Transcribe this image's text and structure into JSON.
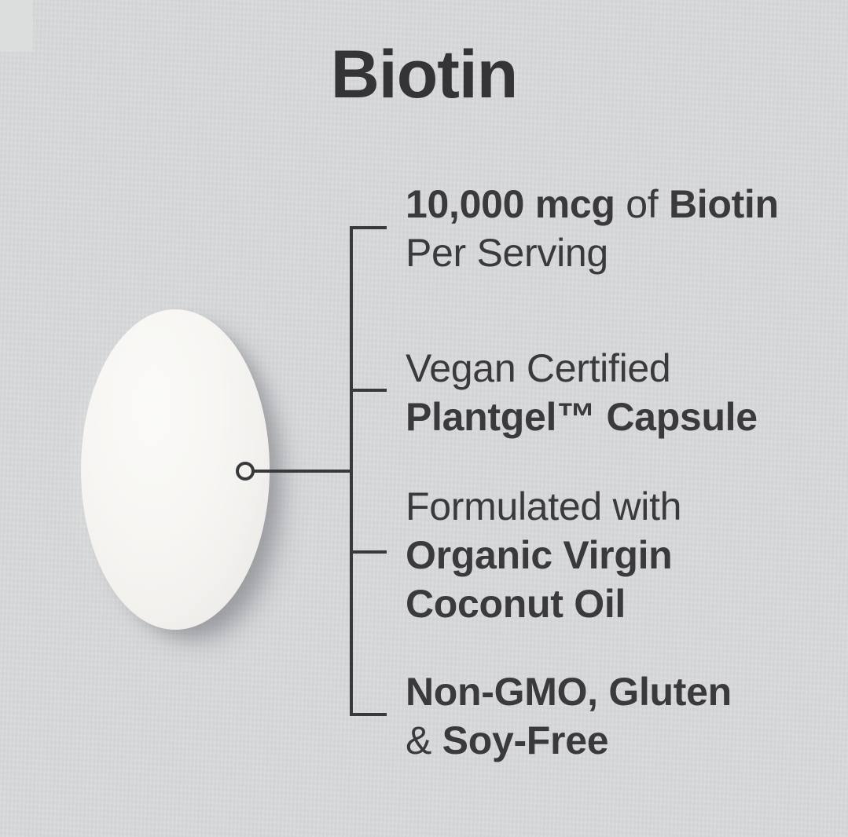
{
  "title": {
    "text": "Biotin"
  },
  "colors": {
    "background": "#d8d9db",
    "text": "#3a3a3c",
    "title_text": "#343437",
    "callout_line": "#39393b",
    "capsule": "#f6f5f2"
  },
  "capsule": {
    "label": "white-softgel-capsule"
  },
  "features": [
    {
      "id": "dosage",
      "lines": [
        [
          {
            "t": "10,000 mcg",
            "b": true
          },
          {
            "t": " of ",
            "b": false
          },
          {
            "t": "Biotin",
            "b": true
          }
        ],
        [
          {
            "t": "Per Serving",
            "b": false
          }
        ]
      ]
    },
    {
      "id": "vegan-capsule",
      "lines": [
        [
          {
            "t": "Vegan Certified",
            "b": false
          }
        ],
        [
          {
            "t": "Plantgel™ Capsule",
            "b": true
          }
        ]
      ]
    },
    {
      "id": "coconut-oil",
      "lines": [
        [
          {
            "t": "Formulated with",
            "b": false
          }
        ],
        [
          {
            "t": "Organic Virgin",
            "b": true
          }
        ],
        [
          {
            "t": "Coconut Oil",
            "b": true
          }
        ]
      ]
    },
    {
      "id": "non-gmo",
      "lines": [
        [
          {
            "t": "Non-GMO, Gluten",
            "b": true
          }
        ],
        [
          {
            "t": "& ",
            "b": false
          },
          {
            "t": "Soy-Free",
            "b": true
          }
        ]
      ]
    }
  ]
}
